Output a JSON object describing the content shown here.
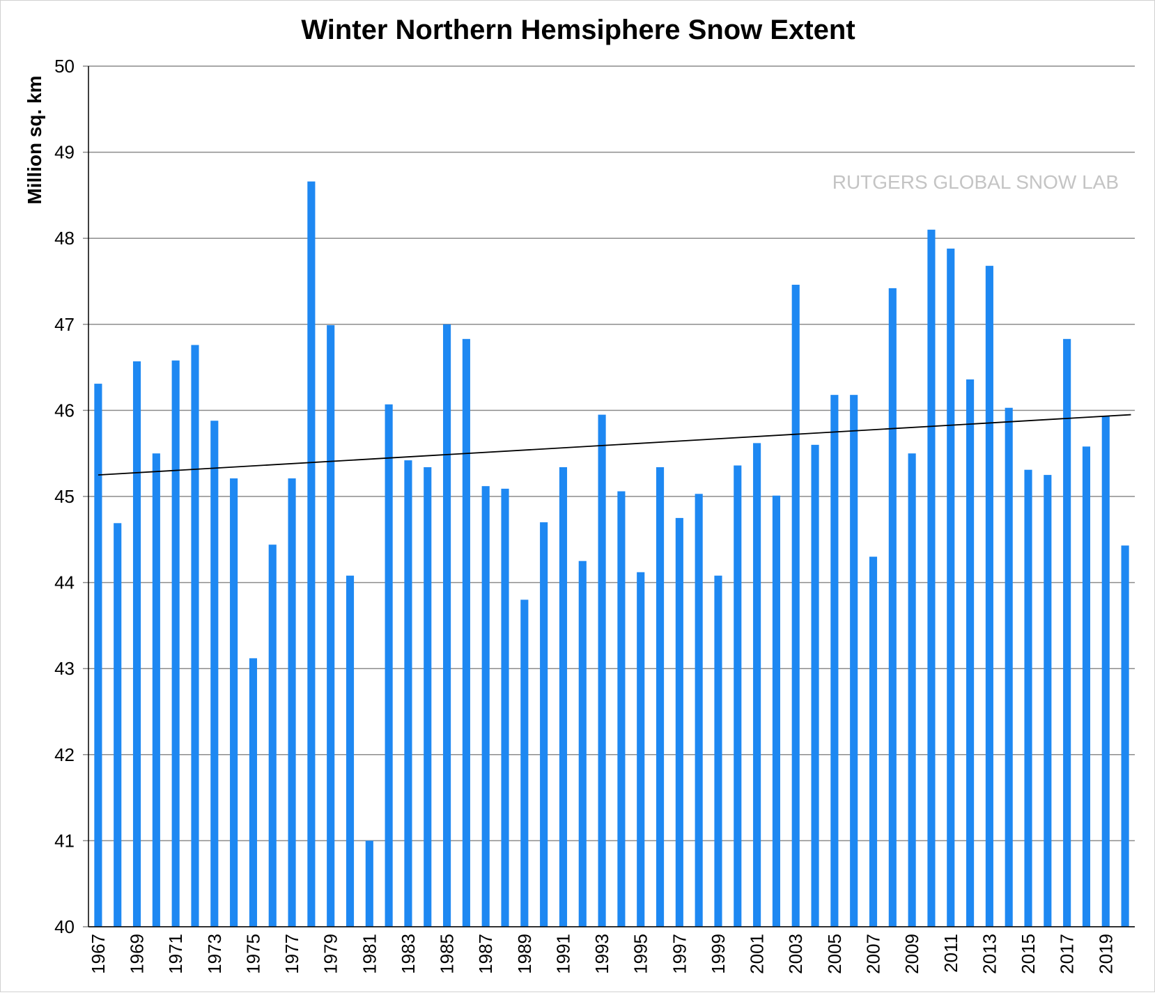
{
  "chart_data": {
    "type": "bar",
    "title": "Winter Northern Hemsiphere Snow Extent",
    "ylabel": "Million sq. km",
    "watermark": "RUTGERS GLOBAL SNOW LAB",
    "ylim": [
      40,
      50
    ],
    "yticks": [
      40,
      41,
      42,
      43,
      44,
      45,
      46,
      47,
      48,
      49,
      50
    ],
    "grid": true,
    "categories": [
      "1967",
      "1968",
      "1969",
      "1970",
      "1971",
      "1972",
      "1973",
      "1974",
      "1975",
      "1976",
      "1977",
      "1978",
      "1979",
      "1980",
      "1981",
      "1982",
      "1983",
      "1984",
      "1985",
      "1986",
      "1987",
      "1988",
      "1989",
      "1990",
      "1991",
      "1992",
      "1993",
      "1994",
      "1995",
      "1996",
      "1997",
      "1998",
      "1999",
      "2000",
      "2001",
      "2002",
      "2003",
      "2004",
      "2005",
      "2006",
      "2007",
      "2008",
      "2009",
      "2010",
      "2011",
      "2012",
      "2013",
      "2014",
      "2015",
      "2016",
      "2017",
      "2018",
      "2019",
      "2020"
    ],
    "xtick_labels": [
      "1967",
      "1969",
      "1971",
      "1973",
      "1975",
      "1977",
      "1979",
      "1981",
      "1983",
      "1985",
      "1987",
      "1989",
      "1991",
      "1993",
      "1995",
      "1997",
      "1999",
      "2001",
      "2003",
      "2005",
      "2007",
      "2009",
      "2011",
      "2013",
      "2015",
      "2017",
      "2019"
    ],
    "values": [
      46.31,
      44.69,
      46.57,
      45.5,
      46.58,
      46.76,
      45.88,
      45.21,
      43.12,
      44.44,
      45.21,
      48.66,
      46.99,
      44.08,
      41.0,
      46.07,
      45.42,
      45.34,
      47.0,
      46.83,
      45.12,
      45.09,
      43.8,
      44.7,
      45.34,
      44.25,
      45.95,
      45.06,
      44.12,
      45.34,
      44.75,
      45.03,
      44.08,
      45.36,
      45.62,
      45.01,
      47.46,
      45.6,
      46.18,
      46.18,
      44.3,
      47.42,
      45.5,
      48.1,
      47.88,
      46.36,
      47.68,
      46.03,
      45.31,
      45.25,
      46.83,
      45.58,
      45.93,
      44.43
    ],
    "trendline": {
      "start": 45.25,
      "end": 45.95
    },
    "colors": {
      "bar": "#1e88f2",
      "trend": "#000000",
      "grid": "#8c8c8c",
      "axis": "#000000"
    }
  }
}
